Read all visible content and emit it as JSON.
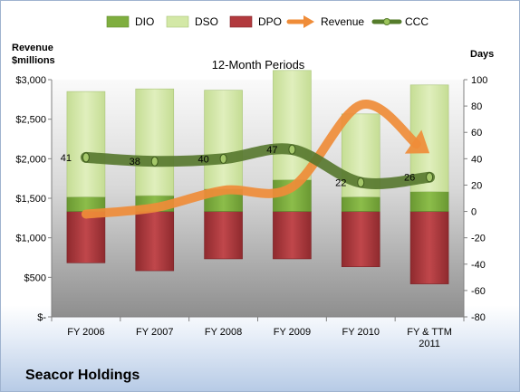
{
  "chart_data": {
    "type": "bar",
    "title": "12-Month Periods",
    "company": "Seacor Holdings",
    "ylabel_left_line1": "Revenue",
    "ylabel_left_line2": "$millions",
    "ylabel_right": "Days",
    "categories": [
      [
        "FY 2006"
      ],
      [
        "FY 2007"
      ],
      [
        "FY 2008"
      ],
      [
        "FY 2009"
      ],
      [
        "FY 2010"
      ],
      [
        "FY & TTM",
        "2011"
      ]
    ],
    "left_axis": {
      "min": 0,
      "max": 3000,
      "step": 500,
      "tick_labels": [
        "$-",
        "$500",
        "$1,000",
        "$1,500",
        "$2,000",
        "$2,500",
        "$3,000"
      ]
    },
    "right_axis": {
      "min": -80,
      "max": 100,
      "step": 20,
      "tick_labels": [
        "-80",
        "-60",
        "-40",
        "-20",
        "0",
        "20",
        "40",
        "60",
        "80",
        "100"
      ]
    },
    "legend_position": "top",
    "legend": [
      {
        "name": "DIO",
        "kind": "box",
        "color": "#7fae3f"
      },
      {
        "name": "DSO",
        "kind": "box",
        "color": "#d3e8a6"
      },
      {
        "name": "DPO",
        "kind": "box",
        "color": "#b23a3e"
      },
      {
        "name": "Revenue",
        "kind": "arrow",
        "color": "#ef8c38"
      },
      {
        "name": "CCC",
        "kind": "line",
        "color": "#557c2b"
      }
    ],
    "series": [
      {
        "name": "DPO",
        "color": "#b23a3e",
        "values": [
          -39,
          -45,
          -36,
          -36,
          -42,
          -55
        ]
      },
      {
        "name": "DIO",
        "color": "#7fae3f",
        "values": [
          11,
          12,
          17,
          24,
          11,
          15
        ]
      },
      {
        "name": "DSO",
        "color": "#d3e8a6",
        "values": [
          80,
          81,
          75,
          83,
          63,
          81
        ]
      },
      {
        "name": "Revenue",
        "color": "#ef8c38",
        "axis": "left",
        "values": [
          1300,
          1380,
          1600,
          1640,
          2680,
          2070
        ]
      },
      {
        "name": "CCC",
        "color": "#557c2b",
        "axis": "right",
        "values": [
          41,
          38,
          40,
          47,
          22,
          26
        ]
      }
    ],
    "grid": false
  }
}
